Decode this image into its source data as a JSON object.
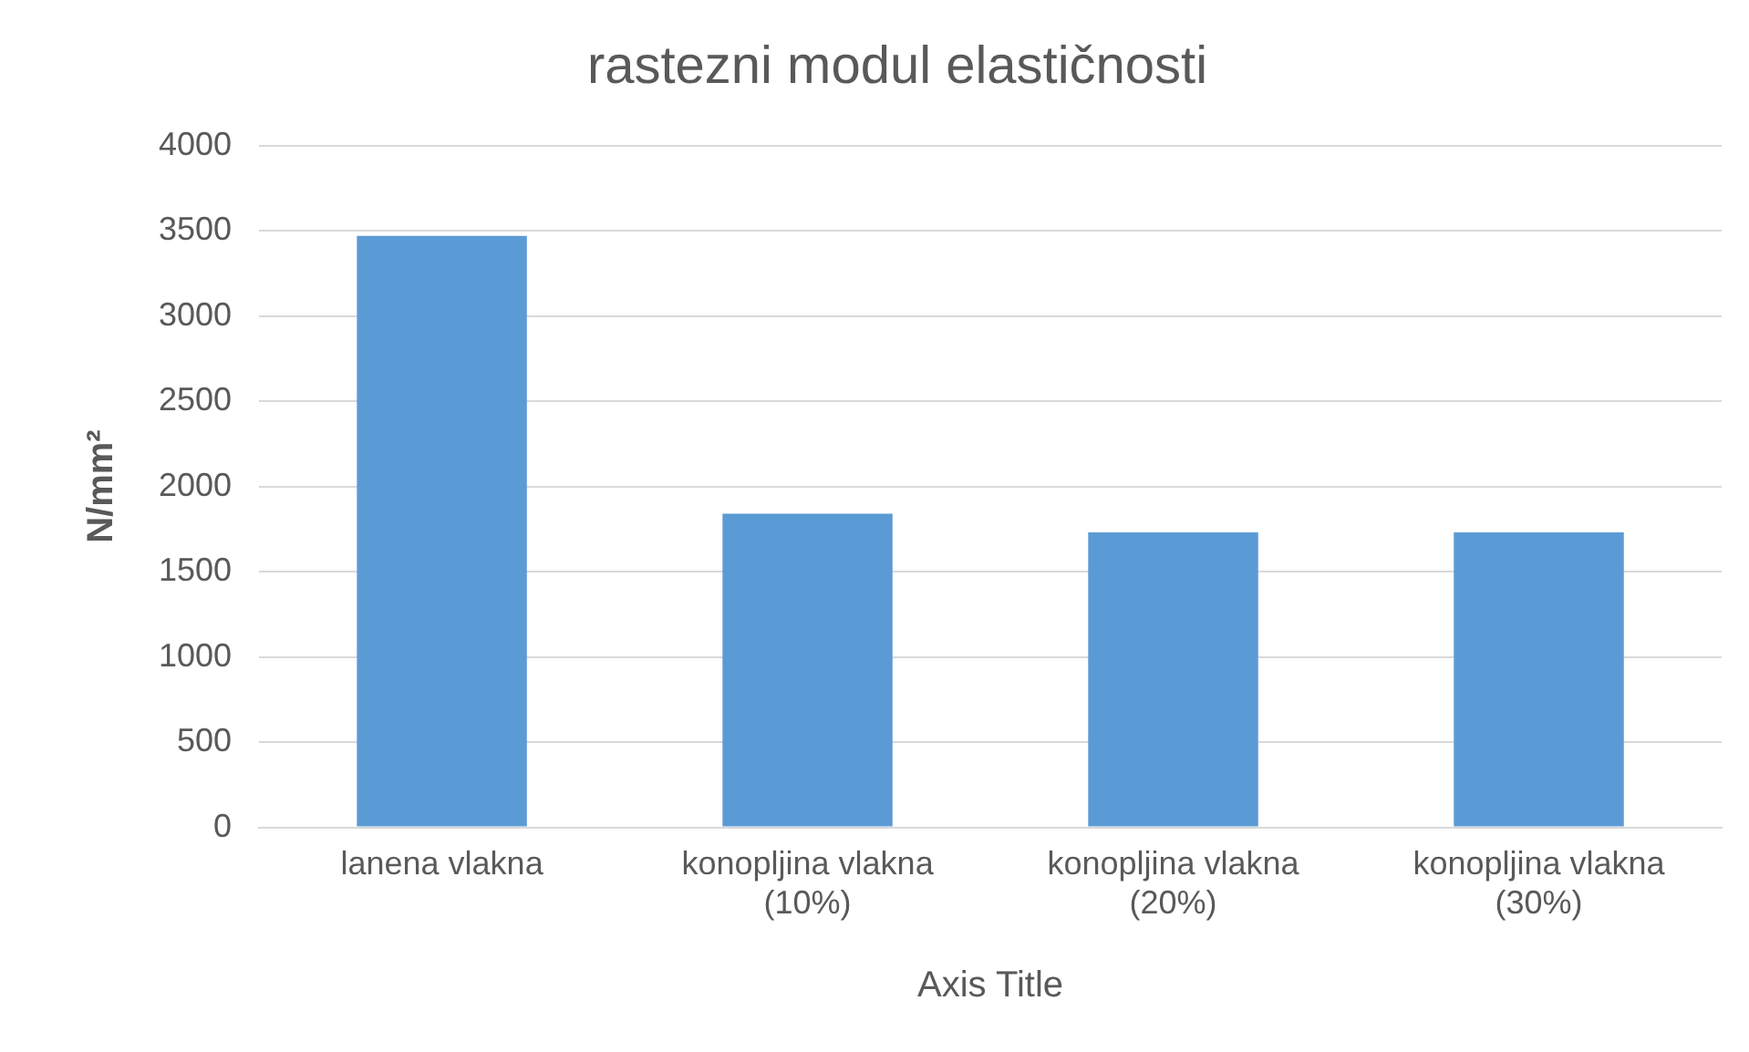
{
  "chart_data": {
    "type": "bar",
    "title": "rastezni modul elastičnosti",
    "xlabel": "Axis Title",
    "ylabel": "N/mm²",
    "categories": [
      "lanena vlakna",
      "konopljina vlakna (10%)",
      "konopljina vlakna (20%)",
      "konopljina vlakna (30%)"
    ],
    "values": [
      3470,
      1840,
      1730,
      1730
    ],
    "color": "#5b9bd5",
    "ylim": [
      0,
      4000
    ],
    "yticks": [
      0,
      500,
      1000,
      1500,
      2000,
      2500,
      3000,
      3500,
      4000
    ],
    "grid": "y"
  }
}
